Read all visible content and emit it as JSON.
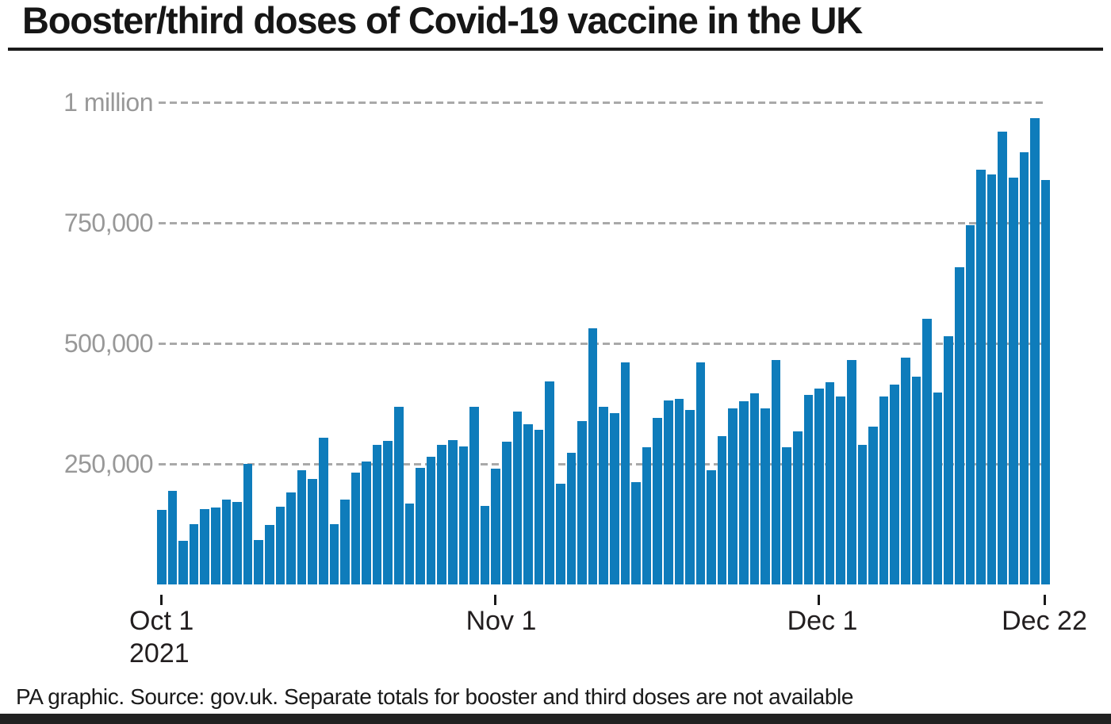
{
  "title": "Booster/third doses of Covid-19 vaccine in the UK",
  "footer": "PA graphic. Source: gov.uk. Separate totals for booster and third doses are not available",
  "colors": {
    "bar": "#0e7cbb",
    "gridline": "#a9a9a9",
    "y_axis_label": "#989898",
    "x_axis_label": "#221e1f",
    "title_text": "#161616",
    "bottom_band": "#212121"
  },
  "chart_data": {
    "type": "bar",
    "title": "Booster/third doses of Covid-19 vaccine in the UK",
    "xlabel": "",
    "ylabel": "",
    "ylim": [
      0,
      1000000
    ],
    "grid": "horizontal-dashed",
    "legend_position": "none",
    "y_ticks": [
      {
        "label": "1 million",
        "value": 1000000
      },
      {
        "label": "750,000",
        "value": 750000
      },
      {
        "label": "500,000",
        "value": 500000
      },
      {
        "label": "250,000",
        "value": 250000
      }
    ],
    "x_ticks": [
      {
        "label": "Oct 1",
        "sublabel": "2021",
        "index": 0
      },
      {
        "label": "Nov 1",
        "sublabel": "",
        "index": 31
      },
      {
        "label": "Dec 1",
        "sublabel": "",
        "index": 61
      },
      {
        "label": "Dec 22",
        "sublabel": "",
        "index": 82
      }
    ],
    "categories": [
      "Oct 1",
      "Oct 2",
      "Oct 3",
      "Oct 4",
      "Oct 5",
      "Oct 6",
      "Oct 7",
      "Oct 8",
      "Oct 9",
      "Oct 10",
      "Oct 11",
      "Oct 12",
      "Oct 13",
      "Oct 14",
      "Oct 15",
      "Oct 16",
      "Oct 17",
      "Oct 18",
      "Oct 19",
      "Oct 20",
      "Oct 21",
      "Oct 22",
      "Oct 23",
      "Oct 24",
      "Oct 25",
      "Oct 26",
      "Oct 27",
      "Oct 28",
      "Oct 29",
      "Oct 30",
      "Oct 31",
      "Nov 1",
      "Nov 2",
      "Nov 3",
      "Nov 4",
      "Nov 5",
      "Nov 6",
      "Nov 7",
      "Nov 8",
      "Nov 9",
      "Nov 10",
      "Nov 11",
      "Nov 12",
      "Nov 13",
      "Nov 14",
      "Nov 15",
      "Nov 16",
      "Nov 17",
      "Nov 18",
      "Nov 19",
      "Nov 20",
      "Nov 21",
      "Nov 22",
      "Nov 23",
      "Nov 24",
      "Nov 25",
      "Nov 26",
      "Nov 27",
      "Nov 28",
      "Nov 29",
      "Nov 30",
      "Dec 1",
      "Dec 2",
      "Dec 3",
      "Dec 4",
      "Dec 5",
      "Dec 6",
      "Dec 7",
      "Dec 8",
      "Dec 9",
      "Dec 10",
      "Dec 11",
      "Dec 12",
      "Dec 13",
      "Dec 14",
      "Dec 15",
      "Dec 16",
      "Dec 17",
      "Dec 18",
      "Dec 19",
      "Dec 20",
      "Dec 21",
      "Dec 22"
    ],
    "values": [
      155000,
      195000,
      90000,
      125000,
      156000,
      160000,
      176000,
      172000,
      251000,
      92000,
      123000,
      162000,
      192000,
      238000,
      220000,
      305000,
      125000,
      177000,
      232000,
      255000,
      290000,
      298000,
      369000,
      168000,
      243000,
      265000,
      290000,
      300000,
      286000,
      369000,
      164000,
      240000,
      296000,
      360000,
      333000,
      322000,
      422000,
      210000,
      274000,
      339000,
      532000,
      369000,
      356000,
      462000,
      212000,
      285000,
      346000,
      382000,
      386000,
      363000,
      462000,
      237000,
      308000,
      365000,
      381000,
      397000,
      366000,
      467000,
      285000,
      318000,
      394000,
      407000,
      420000,
      390000,
      467000,
      290000,
      328000,
      390000,
      416000,
      471000,
      432000,
      552000,
      399000,
      515000,
      659000,
      747000,
      862000,
      852000,
      941000,
      846000,
      898000,
      968000,
      841000
    ]
  }
}
